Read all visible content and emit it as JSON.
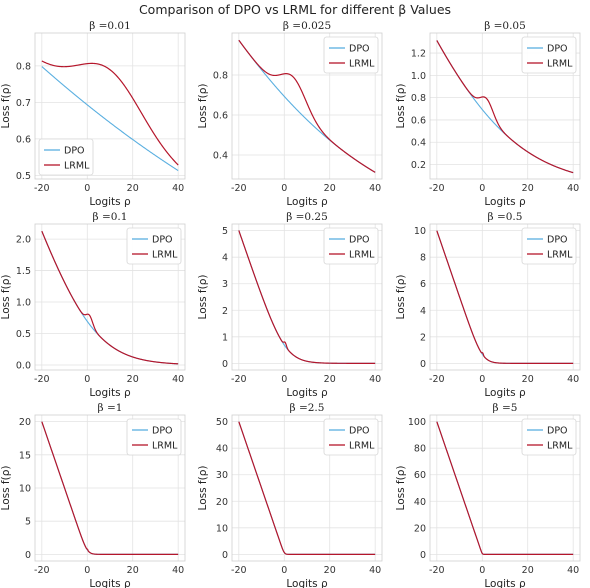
{
  "figure": {
    "title": "Comparison of DPO vs LRML for different β Values"
  },
  "colors": {
    "DPO": "#5aafe0",
    "LRML": "#b5162b",
    "grid": "#e3e3e3",
    "frame": "#cfcfcf"
  },
  "chart_data": [
    {
      "type": "line",
      "title": "β =0.01",
      "beta": 0.01,
      "xlabel": "Logits ρ",
      "ylabel": "Loss f(ρ)",
      "xlim": [
        -23,
        43
      ],
      "ylim": [
        0.49,
        0.89
      ],
      "xticks": [
        -20,
        0,
        20,
        40
      ],
      "yticks": [
        0.5,
        0.6,
        0.7,
        0.8
      ],
      "grid": true,
      "legend": "lower-left",
      "series": [
        {
          "name": "DPO"
        },
        {
          "name": "LRML"
        }
      ]
    },
    {
      "type": "line",
      "title": "β =0.025",
      "beta": 0.025,
      "xlabel": "Logits ρ",
      "ylabel": "Loss f(ρ)",
      "xlim": [
        -23,
        43
      ],
      "ylim": [
        0.28,
        1.01
      ],
      "xticks": [
        -20,
        0,
        20,
        40
      ],
      "yticks": [
        0.4,
        0.6,
        0.8
      ],
      "grid": true,
      "legend": "upper-right",
      "series": [
        {
          "name": "DPO"
        },
        {
          "name": "LRML"
        }
      ]
    },
    {
      "type": "line",
      "title": "β =0.05",
      "beta": 0.05,
      "xlabel": "Logits ρ",
      "ylabel": "Loss f(ρ)",
      "xlim": [
        -23,
        43
      ],
      "ylim": [
        0.07,
        1.38
      ],
      "xticks": [
        -20,
        0,
        20,
        40
      ],
      "yticks": [
        0.2,
        0.4,
        0.6,
        0.8,
        1.0,
        1.2
      ],
      "grid": true,
      "legend": "upper-right",
      "series": [
        {
          "name": "DPO"
        },
        {
          "name": "LRML"
        }
      ]
    },
    {
      "type": "line",
      "title": "β =0.1",
      "beta": 0.1,
      "xlabel": "Logits ρ",
      "ylabel": "Loss f(ρ)",
      "xlim": [
        -23,
        43
      ],
      "ylim": [
        -0.08,
        2.24
      ],
      "xticks": [
        -20,
        0,
        20,
        40
      ],
      "yticks": [
        0.0,
        0.5,
        1.0,
        1.5,
        2.0
      ],
      "grid": true,
      "legend": "upper-right",
      "series": [
        {
          "name": "DPO"
        },
        {
          "name": "LRML"
        }
      ]
    },
    {
      "type": "line",
      "title": "β =0.25",
      "beta": 0.25,
      "xlabel": "Logits ρ",
      "ylabel": "Loss f(ρ)",
      "xlim": [
        -23,
        43
      ],
      "ylim": [
        -0.25,
        5.25
      ],
      "xticks": [
        -20,
        0,
        20,
        40
      ],
      "yticks": [
        0,
        1,
        2,
        3,
        4,
        5
      ],
      "grid": true,
      "legend": "upper-right",
      "series": [
        {
          "name": "DPO"
        },
        {
          "name": "LRML"
        }
      ]
    },
    {
      "type": "line",
      "title": "β =0.5",
      "beta": 0.5,
      "xlabel": "Logits ρ",
      "ylabel": "Loss f(ρ)",
      "xlim": [
        -23,
        43
      ],
      "ylim": [
        -0.5,
        10.5
      ],
      "xticks": [
        -20,
        0,
        20,
        40
      ],
      "yticks": [
        0,
        2,
        4,
        6,
        8,
        10
      ],
      "grid": true,
      "legend": "upper-right",
      "series": [
        {
          "name": "DPO"
        },
        {
          "name": "LRML"
        }
      ]
    },
    {
      "type": "line",
      "title": "β =1",
      "beta": 1,
      "xlabel": "Logits ρ",
      "ylabel": "Loss f(ρ)",
      "xlim": [
        -23,
        43
      ],
      "ylim": [
        -1,
        21
      ],
      "xticks": [
        -20,
        0,
        20,
        40
      ],
      "yticks": [
        0,
        5,
        10,
        15,
        20
      ],
      "grid": true,
      "legend": "upper-right",
      "series": [
        {
          "name": "DPO"
        },
        {
          "name": "LRML"
        }
      ]
    },
    {
      "type": "line",
      "title": "β =2.5",
      "beta": 2.5,
      "xlabel": "Logits ρ",
      "ylabel": "Loss f(ρ)",
      "xlim": [
        -23,
        43
      ],
      "ylim": [
        -2.5,
        52.5
      ],
      "xticks": [
        -20,
        0,
        20,
        40
      ],
      "yticks": [
        0,
        10,
        20,
        30,
        40,
        50
      ],
      "grid": true,
      "legend": "upper-right",
      "series": [
        {
          "name": "DPO"
        },
        {
          "name": "LRML"
        }
      ]
    },
    {
      "type": "line",
      "title": "β =5",
      "beta": 5,
      "xlabel": "Logits ρ",
      "ylabel": "Loss f(ρ)",
      "xlim": [
        -23,
        43
      ],
      "ylim": [
        -5,
        105
      ],
      "xticks": [
        -20,
        0,
        20,
        40
      ],
      "yticks": [
        0,
        20,
        40,
        60,
        80,
        100
      ],
      "grid": true,
      "legend": "upper-right",
      "series": [
        {
          "name": "DPO"
        },
        {
          "name": "LRML"
        }
      ]
    }
  ]
}
